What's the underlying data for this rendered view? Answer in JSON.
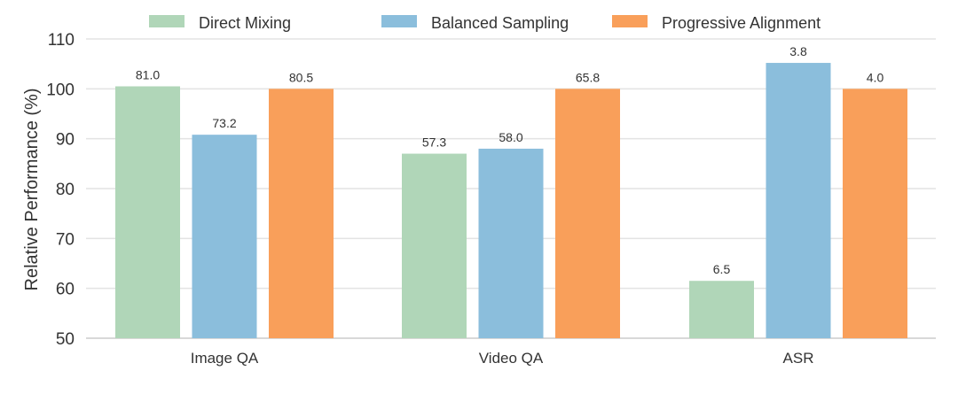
{
  "chart_data": {
    "type": "bar",
    "title": "",
    "xlabel": "",
    "ylabel": "Relative Performance (%)",
    "ylim": [
      50,
      110
    ],
    "yticks": [
      50,
      60,
      70,
      80,
      90,
      100,
      110
    ],
    "grid": true,
    "legend_position": "top",
    "categories": [
      "Image QA",
      "Video QA",
      "ASR"
    ],
    "series": [
      {
        "name": "Direct Mixing",
        "color": "#b0d6b8",
        "values": [
          100.5,
          87.0,
          61.5
        ],
        "labels": [
          "81.0",
          "57.3",
          "6.5"
        ]
      },
      {
        "name": "Balanced Sampling",
        "color": "#8bbedc",
        "values": [
          90.8,
          88.0,
          105.2
        ],
        "labels": [
          "73.2",
          "58.0",
          "3.8"
        ]
      },
      {
        "name": "Progressive Alignment",
        "color": "#f99f5a",
        "values": [
          100.0,
          100.0,
          100.0
        ],
        "labels": [
          "80.5",
          "65.8",
          "4.0"
        ]
      }
    ]
  }
}
